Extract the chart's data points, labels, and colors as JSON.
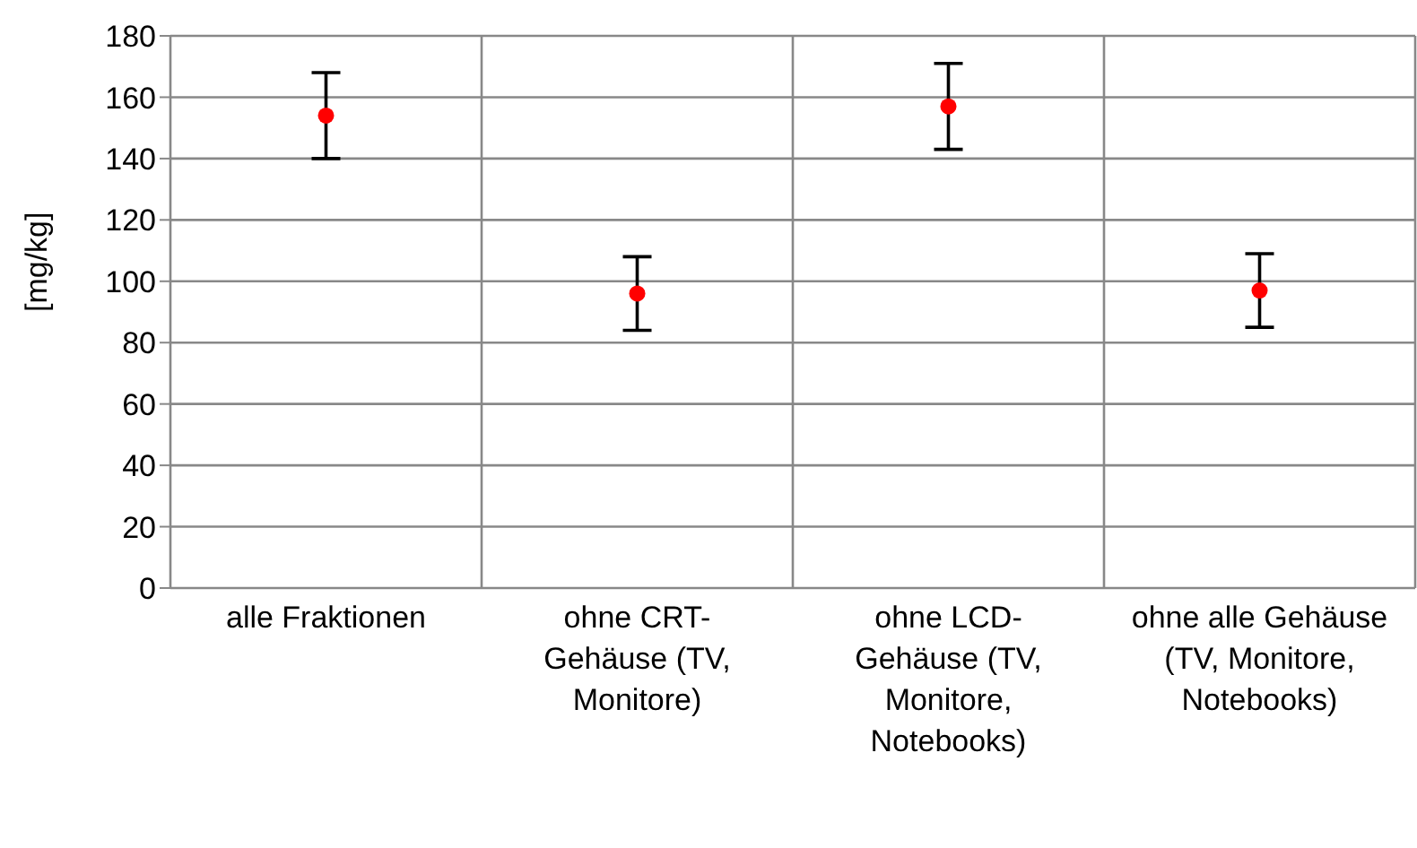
{
  "chart_data": {
    "type": "scatter",
    "ylabel": "[mg/kg]",
    "categories": [
      "alle Fraktionen",
      "ohne CRT-Gehäuse (TV, Monitore)",
      "ohne LCD-Gehäuse (TV, Monitore, Notebooks)",
      "ohne alle Gehäuse (TV, Monitore, Notebooks)"
    ],
    "series": [
      {
        "color": "#ff0000",
        "values": [
          154,
          96,
          157,
          97
        ],
        "errors": [
          14,
          12,
          14,
          12
        ]
      }
    ],
    "ylim": [
      0,
      180
    ],
    "yticks": [
      0,
      20,
      40,
      60,
      80,
      100,
      120,
      140,
      160,
      180
    ],
    "grid": true,
    "marker": "circle"
  }
}
